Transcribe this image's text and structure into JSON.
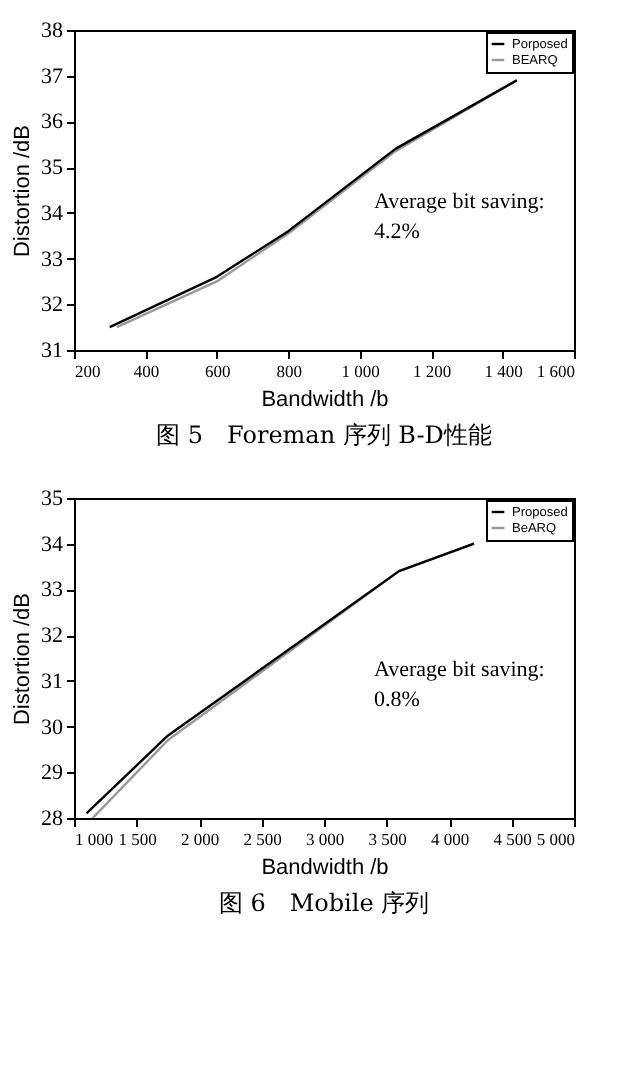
{
  "chart_data": [
    {
      "type": "line",
      "title": "图 5　Foreman 序列 B-D性能",
      "xlabel": "Bandwidth /b",
      "ylabel": "Distortion /dB",
      "xlim": [
        200,
        1600
      ],
      "xticks": [
        200,
        400,
        600,
        800,
        {
          "value": 1000,
          "label": "1 000"
        },
        {
          "value": 1200,
          "label": "1 200"
        },
        {
          "value": 1400,
          "label": "1 400"
        },
        {
          "value": 1600,
          "label": "1 600"
        }
      ],
      "ylim": [
        31,
        38
      ],
      "yticks": [
        31,
        32,
        33,
        34,
        35,
        36,
        37,
        38
      ],
      "grid": false,
      "legend": "top right",
      "annotations": [
        "Average bit saving:\n4.2%"
      ],
      "series": [
        {
          "name": "Porposed",
          "color": "#000000",
          "x": [
            300,
            600,
            800,
            1100,
            1440
          ],
          "values": [
            31.5,
            32.6,
            33.6,
            35.4,
            36.9
          ]
        },
        {
          "name": "BEARQ",
          "color": "#999999",
          "x": [
            320,
            600,
            800,
            1100,
            1440
          ],
          "values": [
            31.5,
            32.5,
            33.55,
            35.35,
            36.9
          ]
        }
      ]
    },
    {
      "type": "line",
      "title": "图 6　Mobile 序列",
      "xlabel": "Bandwidth /b",
      "ylabel": "Distortion /dB",
      "xlim": [
        1000,
        5000
      ],
      "xticks": [
        {
          "value": 1000,
          "label": "1 000"
        },
        {
          "value": 1500,
          "label": "1 500"
        },
        {
          "value": 2000,
          "label": "2 000"
        },
        {
          "value": 2500,
          "label": "2 500"
        },
        {
          "value": 3000,
          "label": "3 000"
        },
        {
          "value": 3500,
          "label": "3 500"
        },
        {
          "value": 4000,
          "label": "4 000"
        },
        {
          "value": 4500,
          "label": "4 500"
        },
        {
          "value": 5000,
          "label": "5 000"
        }
      ],
      "ylim": [
        28,
        35
      ],
      "yticks": [
        28,
        29,
        30,
        31,
        32,
        33,
        34,
        35
      ],
      "grid": false,
      "legend": "top right",
      "annotations": [
        "Average bit saving:\n0.8%"
      ],
      "series": [
        {
          "name": "Proposed",
          "color": "#000000",
          "x": [
            1100,
            1750,
            3600,
            4200
          ],
          "values": [
            28.1,
            29.8,
            33.4,
            34.0
          ]
        },
        {
          "name": "BeARQ",
          "color": "#999999",
          "x": [
            1150,
            1750,
            3600,
            4200
          ],
          "values": [
            28.0,
            29.7,
            33.4,
            34.0
          ]
        }
      ]
    }
  ]
}
